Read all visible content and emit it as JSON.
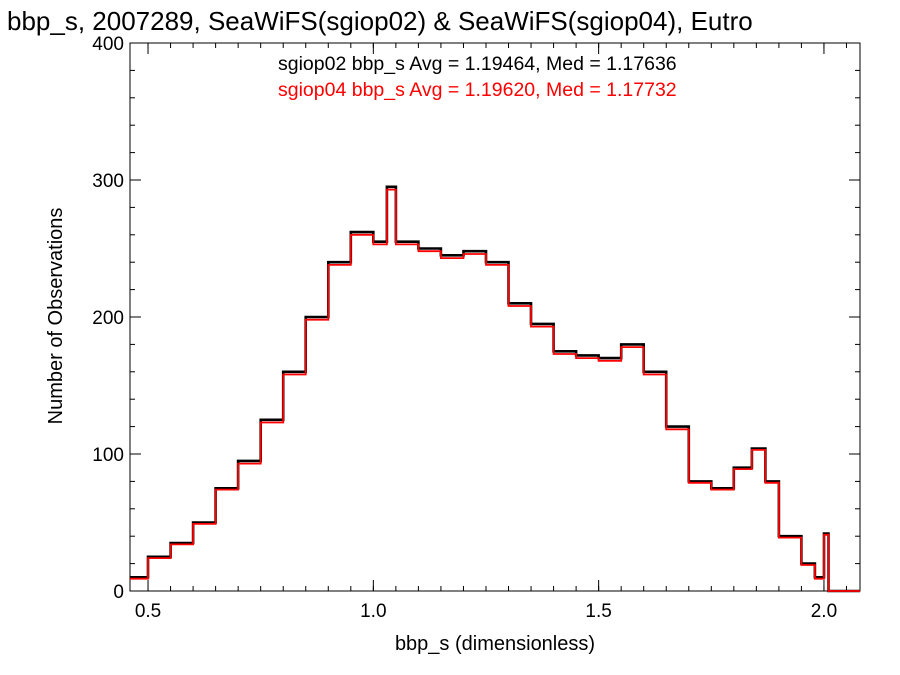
{
  "chart_data": {
    "type": "line",
    "title": "bbp_s, 2007289, SeaWiFS(sgiop02) & SeaWiFS(sgiop04), Eutro",
    "xlabel": "bbp_s (dimensionless)",
    "ylabel": "Number of Observations",
    "xlim": [
      0.46,
      2.08
    ],
    "ylim": [
      0,
      400
    ],
    "x_ticks": [
      0.5,
      1.0,
      1.5,
      2.0
    ],
    "x_tick_labels": [
      "0.5",
      "1.0",
      "1.5",
      "2.0"
    ],
    "y_ticks": [
      0,
      100,
      200,
      300,
      400
    ],
    "y_tick_labels": [
      "0",
      "100",
      "200",
      "300",
      "400"
    ],
    "grid": false,
    "annotations": [
      {
        "text": "sgiop02 bbp_s Avg = 1.19464, Med = 1.17636",
        "color": "#000000"
      },
      {
        "text": "sgiop04 bbp_s Avg = 1.19620, Med = 1.17732",
        "color": "#ff0000"
      }
    ],
    "series": [
      {
        "color": "#000000",
        "x": [
          0.46,
          0.5,
          0.55,
          0.6,
          0.65,
          0.7,
          0.75,
          0.8,
          0.85,
          0.9,
          0.95,
          1.0,
          1.03,
          1.05,
          1.1,
          1.15,
          1.2,
          1.25,
          1.3,
          1.35,
          1.4,
          1.45,
          1.5,
          1.55,
          1.6,
          1.65,
          1.7,
          1.75,
          1.8,
          1.84,
          1.87,
          1.9,
          1.95,
          1.98,
          2.0,
          2.01,
          2.08
        ],
        "y": [
          10,
          25,
          35,
          50,
          75,
          95,
          125,
          160,
          200,
          240,
          262,
          255,
          295,
          255,
          250,
          245,
          248,
          240,
          210,
          195,
          175,
          172,
          170,
          180,
          160,
          120,
          80,
          75,
          90,
          104,
          80,
          40,
          20,
          10,
          42,
          0,
          0
        ]
      },
      {
        "color": "#ff0000",
        "x": [
          0.46,
          0.5,
          0.55,
          0.6,
          0.65,
          0.7,
          0.75,
          0.8,
          0.85,
          0.9,
          0.95,
          1.0,
          1.03,
          1.05,
          1.1,
          1.15,
          1.2,
          1.25,
          1.3,
          1.35,
          1.4,
          1.45,
          1.5,
          1.55,
          1.6,
          1.65,
          1.7,
          1.75,
          1.8,
          1.84,
          1.87,
          1.9,
          1.95,
          1.98,
          2.0,
          2.01,
          2.08
        ],
        "y": [
          9,
          24,
          34,
          49,
          74,
          93,
          123,
          158,
          198,
          238,
          260,
          253,
          293,
          253,
          248,
          243,
          246,
          238,
          208,
          193,
          173,
          170,
          168,
          178,
          158,
          118,
          79,
          74,
          89,
          103,
          79,
          39,
          19,
          9,
          41,
          0,
          0
        ]
      }
    ]
  }
}
